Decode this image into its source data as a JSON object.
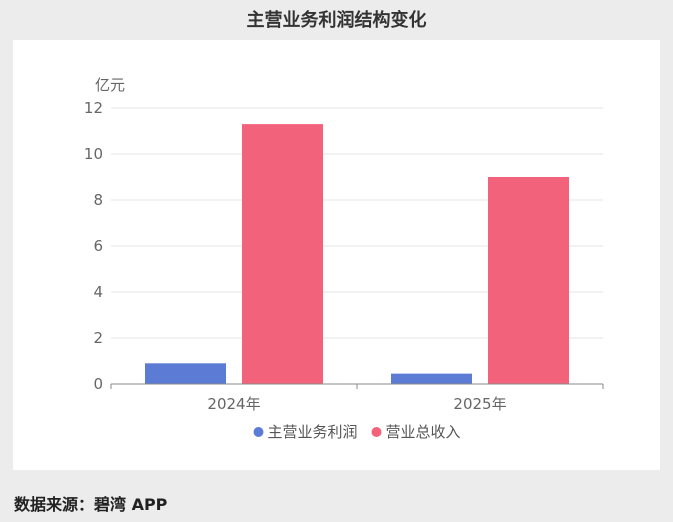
{
  "title": "主营业务利润结构变化",
  "source": "数据来源：碧湾 APP",
  "chart_data": {
    "type": "bar",
    "title": "主营业务利润结构变化",
    "unit": "亿元",
    "categories": [
      "2024年",
      "2025年"
    ],
    "series": [
      {
        "name": "主营业务利润",
        "color": "#5b7bd5",
        "values": [
          0.9,
          0.45
        ]
      },
      {
        "name": "营业总收入",
        "color": "#f2637b",
        "values": [
          11.3,
          9.0
        ]
      }
    ],
    "ylim": [
      0,
      12
    ],
    "yticks": [
      0,
      2,
      4,
      6,
      8,
      10,
      12
    ],
    "grid": true,
    "legend": "bottom"
  }
}
